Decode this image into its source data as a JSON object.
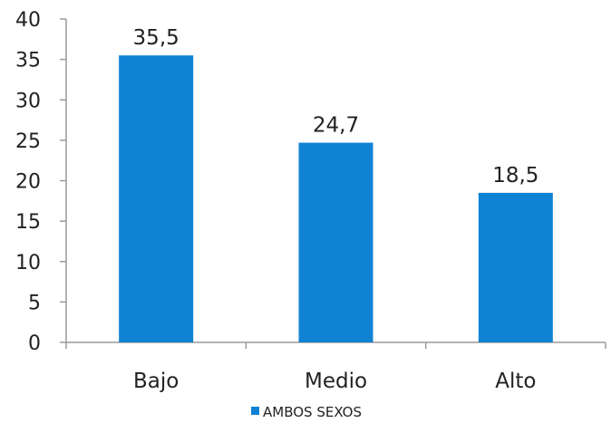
{
  "chart_data": {
    "type": "bar",
    "categories": [
      "Bajo",
      "Medio",
      "Alto"
    ],
    "series": [
      {
        "name": "AMBOS SEXOS",
        "values": [
          35.5,
          24.7,
          18.5
        ],
        "labels": [
          "35,5",
          "24,7",
          "18,5"
        ]
      }
    ],
    "title": "",
    "xlabel": "",
    "ylabel": "",
    "ylim": [
      0,
      40
    ],
    "yticks": [
      0,
      5,
      10,
      15,
      20,
      25,
      30,
      35,
      40
    ],
    "grid": false,
    "legend": "bottom",
    "color": "#0f82d4"
  }
}
